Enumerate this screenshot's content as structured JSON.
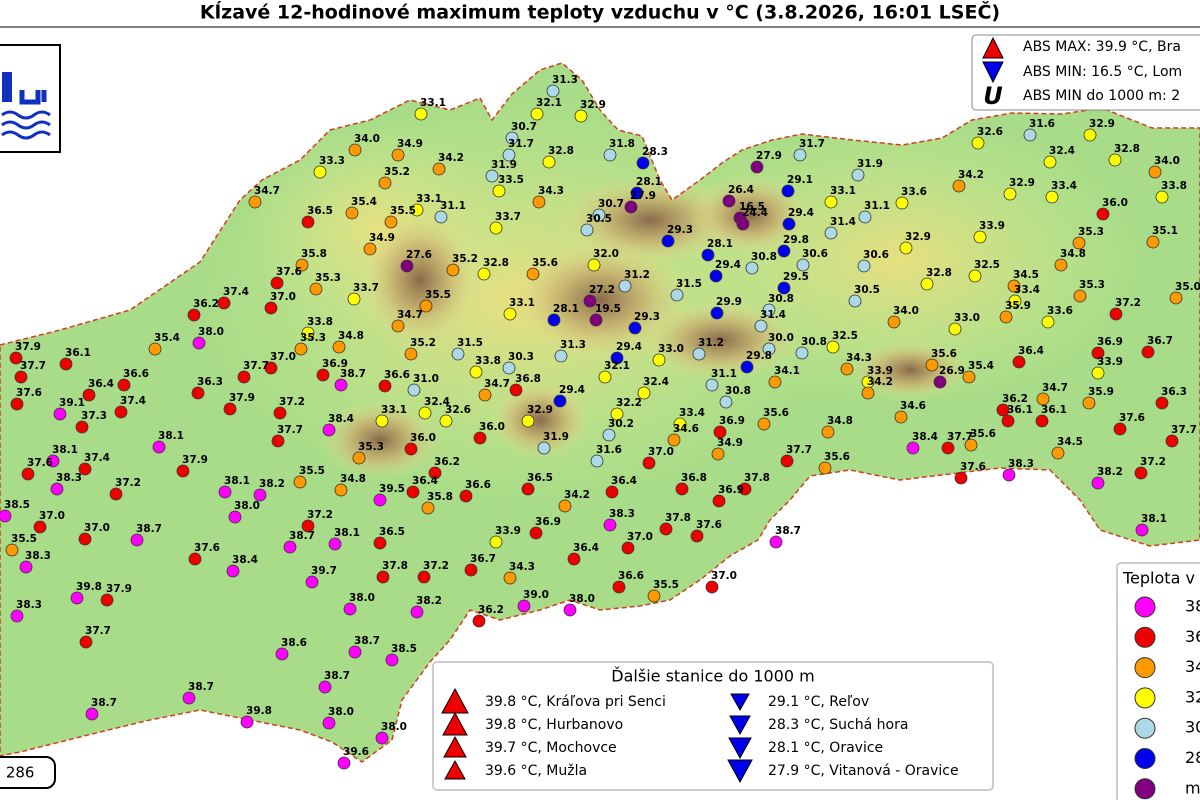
{
  "title": "Kĺzavé 12-hodinové maximum teploty vzduchu v °C (3.8.2026, 16:01 LSEČ)",
  "info_box": [
    "ABS MAX: 39.9 °C, Bra",
    "ABS MIN: 16.5 °C, Lom",
    "ABS MIN do 1000 m: 2"
  ],
  "count_box": ": 286",
  "stations": [
    "33.1",
    "31.3",
    "32.1",
    "32.9",
    "30.7",
    "34.0",
    "34.9",
    "31.7",
    "31.8",
    "28.3",
    "33.3",
    "34.2",
    "32.8",
    "31.9",
    "28.1",
    "27.9",
    "35.2",
    "33.5",
    "34.7",
    "35.4",
    "33.1",
    "31.1",
    "34.3",
    "30.7",
    "30.5",
    "36.5",
    "35.5",
    "33.7",
    "29.3",
    "34.9",
    "27.6",
    "35.2",
    "32.8",
    "35.6",
    "32.0",
    "28.1",
    "29.4",
    "35.8",
    "37.6",
    "35.3",
    "33.7",
    "35.5",
    "31.2",
    "31.5",
    "37.4",
    "37.0",
    "36.2",
    "33.1",
    "27.2",
    "28.1",
    "19.5",
    "29.3",
    "29.9",
    "34.7",
    "33.8",
    "35.4",
    "38.0",
    "34.8",
    "35.3",
    "35.2",
    "31.5",
    "31.3",
    "29.4",
    "33.0",
    "31.2",
    "37.9",
    "36.1",
    "37.0",
    "36.9",
    "33.8",
    "30.3",
    "32.1",
    "37.7",
    "37.7",
    "38.7",
    "36.6",
    "31.0",
    "36.4",
    "36.6",
    "36.3",
    "34.7",
    "36.8",
    "32.4",
    "31.1",
    "37.6",
    "39.1",
    "37.4",
    "37.9",
    "37.2",
    "32.4",
    "32.6",
    "29.4",
    "32.2",
    "30.8",
    "38.4",
    "33.1",
    "37.3",
    "33.4",
    "36.9",
    "35.6",
    "37.7",
    "36.0",
    "32.9",
    "30.2",
    "34.6",
    "38.1",
    "36.0",
    "31.9",
    "34.9",
    "34.8",
    "38.1",
    "35.3",
    "37.4",
    "37.0",
    "31.6",
    "37.7",
    "37.9",
    "36.2",
    "35.6",
    "37.6",
    "36.4",
    "36.5",
    "36.4",
    "36.8",
    "37.8",
    "35.5",
    "38.3",
    "38.1",
    "38.2",
    "34.8",
    "39.5",
    "36.6",
    "36.9",
    "37.2",
    "35.8",
    "34.2",
    "38.5",
    "38.0",
    "37.2",
    "38.3",
    "37.0",
    "36.9",
    "37.0",
    "38.7",
    "38.7",
    "38.1",
    "36.5",
    "33.9",
    "37.8",
    "37.6",
    "38.7",
    "35.5",
    "37.0",
    "36.4",
    "37.6",
    "38.3",
    "36.7",
    "38.4",
    "39.7",
    "37.8",
    "37.2",
    "34.3",
    "36.6",
    "37.0",
    "35.5",
    "39.8",
    "37.9",
    "38.0",
    "38.2",
    "36.2",
    "39.0",
    "38.0",
    "38.3",
    "37.7",
    "38.6",
    "38.7",
    "38.5",
    "38.7",
    "38.7",
    "38.7",
    "39.8",
    "38.0",
    "38.0",
    "39.6",
    "27.9",
    "31.7",
    "26.4",
    "16.5",
    "24.4",
    "29.1",
    "33.1",
    "31.9",
    "33.6",
    "29.4",
    "29.8",
    "31.4",
    "31.1",
    "30.8",
    "30.6",
    "30.6",
    "29.5",
    "32.9",
    "32.8",
    "30.5",
    "30.8",
    "31.4",
    "34.0",
    "33.0",
    "32.5",
    "30.0",
    "30.8",
    "29.8",
    "34.3",
    "33.9",
    "34.1",
    "34.2",
    "34.6",
    "35.6",
    "26.9",
    "35.4",
    "36.4",
    "32.6",
    "31.6",
    "32.9",
    "32.4",
    "32.8",
    "34.0",
    "34.2",
    "32.9",
    "33.4",
    "33.8",
    "36.0",
    "33.9",
    "35.3",
    "35.1",
    "32.5",
    "34.8",
    "34.5",
    "33.4",
    "35.3",
    "35.0",
    "35.9",
    "33.6",
    "37.2",
    "36.9",
    "36.7",
    "33.9",
    "34.7",
    "36.2",
    "36.1",
    "36.1",
    "35.9",
    "36.3",
    "37.6",
    "37.7",
    "38.4",
    "37.7",
    "35.6",
    "34.5",
    "37.6",
    "38.3",
    "38.2",
    "37.2",
    "38.1"
  ],
  "extra_legend": {
    "title": "Ďalšie stanice do 1000 m",
    "max": [
      "39.8 °C, Kráľova pri Senci",
      "39.8 °C, Hurbanovo",
      "39.7 °C, Mochovce",
      "39.6 °C, Mužla"
    ],
    "min": [
      "29.1 °C, Reľov",
      "28.3 °C, Suchá hora",
      "28.1 °C, Oravice",
      "27.9 °C, Vitanová - Oravice"
    ]
  },
  "legend": {
    "title": "Teplota v",
    "items": [
      {
        "label": "38",
        "color": "#ff00ff"
      },
      {
        "label": "36",
        "color": "#ee0000"
      },
      {
        "label": "34",
        "color": "#ff9900"
      },
      {
        "label": "32",
        "color": "#ffff00"
      },
      {
        "label": "30",
        "color": "#add8e6"
      },
      {
        "label": "28",
        "color": "#0000ee"
      },
      {
        "label": "m",
        "color": "#800080"
      }
    ]
  }
}
